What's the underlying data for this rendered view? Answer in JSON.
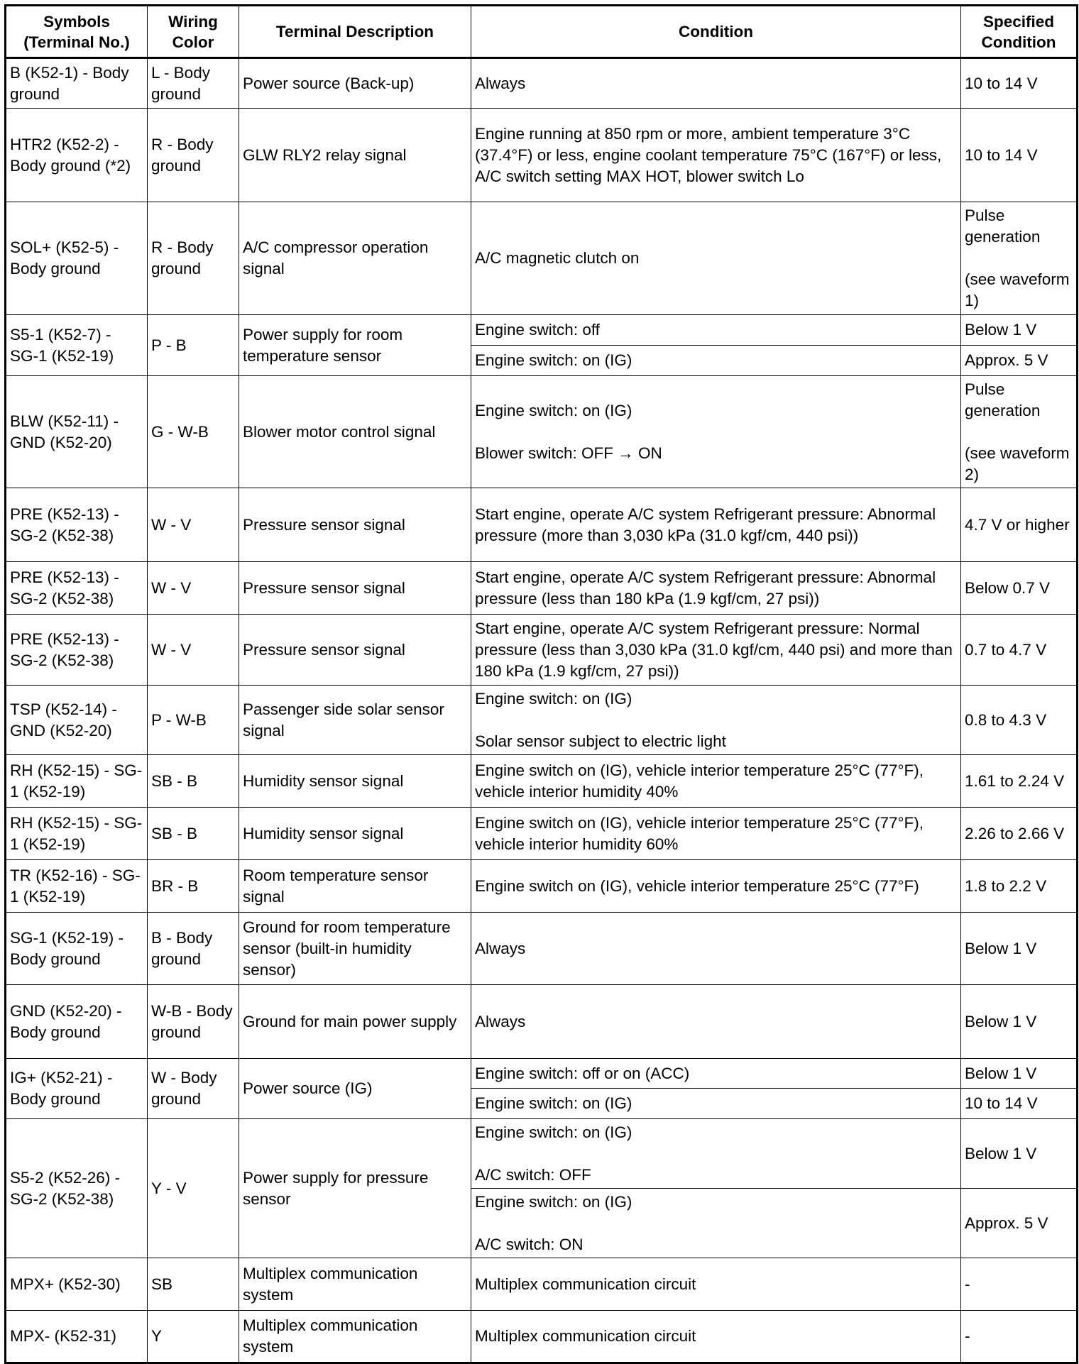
{
  "headers": [
    "Symbols\n(Terminal No.)",
    "Wiring\nColor",
    "Terminal Description",
    "Condition",
    "Specified\nCondition"
  ],
  "rows": [
    {
      "symbol": "B (K52-1) - Body ground",
      "wiring": "L - Body ground",
      "description": "Power source (Back-up)",
      "conditions": [
        {
          "condition": "Always",
          "spec": "10 to 14 V"
        }
      ]
    },
    {
      "symbol": "HTR2 (K52-2) - Body ground (*2)",
      "wiring": "R - Body ground",
      "description": "GLW RLY2 relay signal",
      "conditions": [
        {
          "condition": "Engine running at 850 rpm or more, ambient temperature 3°C (37.4°F) or less, engine coolant temperature 75°C (167°F) or less, A/C switch setting MAX HOT, blower switch Lo",
          "spec": "10 to 14 V"
        }
      ]
    },
    {
      "symbol": "SOL+ (K52-5) - Body ground",
      "wiring": "R - Body ground",
      "description": "A/C compressor operation signal",
      "conditions": [
        {
          "condition": "A/C magnetic clutch on",
          "spec": "Pulse generation\n\n(see waveform 1)"
        }
      ]
    },
    {
      "symbol": "S5-1 (K52-7) - SG-1 (K52-19)",
      "wiring": "P - B",
      "description": "Power supply for room temperature sensor",
      "conditions": [
        {
          "condition": "Engine switch: off",
          "spec": "Below 1 V"
        },
        {
          "condition": "Engine switch: on (IG)",
          "spec": "Approx. 5 V"
        }
      ]
    },
    {
      "symbol": "BLW (K52-11) - GND (K52-20)",
      "wiring": "G - W-B",
      "description": "Blower motor control signal",
      "conditions": [
        {
          "condition": "Engine switch: on (IG)\n\nBlower switch: OFF → ON",
          "spec": "Pulse generation\n\n(see waveform 2)"
        }
      ]
    },
    {
      "symbol": "PRE (K52-13) - SG-2 (K52-38)",
      "wiring": "W - V",
      "description": "Pressure sensor signal",
      "conditions": [
        {
          "condition": "Start engine, operate A/C system Refrigerant pressure: Abnormal pressure (more than 3,030 kPa (31.0 kgf/cm, 440 psi))",
          "spec": "4.7 V or higher"
        }
      ]
    },
    {
      "symbol": "PRE (K52-13) - SG-2 (K52-38)",
      "wiring": "W - V",
      "description": "Pressure sensor signal",
      "conditions": [
        {
          "condition": "Start engine, operate A/C system Refrigerant pressure: Abnormal pressure (less than 180 kPa (1.9 kgf/cm, 27 psi))",
          "spec": "Below 0.7 V"
        }
      ]
    },
    {
      "symbol": "PRE (K52-13) - SG-2 (K52-38)",
      "wiring": "W - V",
      "description": "Pressure sensor signal",
      "conditions": [
        {
          "condition": "Start engine, operate A/C system Refrigerant pressure: Normal pressure (less than 3,030 kPa (31.0 kgf/cm, 440 psi) and more than 180 kPa (1.9 kgf/cm, 27 psi))",
          "spec": "0.7 to 4.7 V"
        }
      ]
    },
    {
      "symbol": "TSP (K52-14) - GND (K52-20)",
      "wiring": "P - W-B",
      "description": "Passenger side solar sensor signal",
      "conditions": [
        {
          "condition": "Engine switch: on (IG)\n\nSolar sensor subject to electric light",
          "spec": "0.8 to 4.3 V"
        }
      ]
    },
    {
      "symbol": "RH (K52-15) - SG-1 (K52-19)",
      "wiring": "SB - B",
      "description": "Humidity sensor signal",
      "conditions": [
        {
          "condition": "Engine switch on (IG), vehicle interior temperature 25°C (77°F), vehicle interior humidity 40%",
          "spec": "1.61 to 2.24 V"
        }
      ]
    },
    {
      "symbol": "RH (K52-15) - SG-1 (K52-19)",
      "wiring": "SB - B",
      "description": "Humidity sensor signal",
      "conditions": [
        {
          "condition": "Engine switch on (IG), vehicle interior temperature 25°C (77°F), vehicle interior humidity 60%",
          "spec": "2.26 to 2.66 V"
        }
      ]
    },
    {
      "symbol": "TR (K52-16) - SG-1 (K52-19)",
      "wiring": "BR - B",
      "description": "Room temperature sensor signal",
      "conditions": [
        {
          "condition": "Engine switch on (IG), vehicle interior temperature 25°C (77°F)",
          "spec": "1.8 to 2.2 V"
        }
      ]
    },
    {
      "symbol": "SG-1 (K52-19) - Body ground",
      "wiring": "B - Body ground",
      "description": "Ground for room temperature sensor (built-in humidity sensor)",
      "conditions": [
        {
          "condition": "Always",
          "spec": "Below 1 V"
        }
      ]
    },
    {
      "symbol": "GND (K52-20) - Body ground",
      "wiring": "W-B - Body ground",
      "description": "Ground for main power supply",
      "conditions": [
        {
          "condition": "Always",
          "spec": "Below 1 V"
        }
      ]
    },
    {
      "symbol": "IG+ (K52-21) - Body ground",
      "wiring": "W - Body ground",
      "description": "Power source (IG)",
      "conditions": [
        {
          "condition": "Engine switch: off or on (ACC)",
          "spec": "Below 1 V"
        },
        {
          "condition": "Engine switch: on (IG)",
          "spec": "10 to 14 V"
        }
      ]
    },
    {
      "symbol": "S5-2 (K52-26) - SG-2 (K52-38)",
      "wiring": "Y - V",
      "description": "Power supply for pressure sensor",
      "conditions": [
        {
          "condition": "Engine switch: on (IG)\n\nA/C switch: OFF",
          "spec": "Below 1 V"
        },
        {
          "condition": "Engine switch: on (IG)\n\nA/C switch: ON",
          "spec": "Approx. 5 V"
        }
      ]
    },
    {
      "symbol": "MPX+ (K52-30)",
      "wiring": "SB",
      "description": "Multiplex communication system",
      "conditions": [
        {
          "condition": "Multiplex communication circuit",
          "spec": "-"
        }
      ]
    },
    {
      "symbol": "MPX- (K52-31)",
      "wiring": "Y",
      "description": "Multiplex communication system",
      "conditions": [
        {
          "condition": "Multiplex communication circuit",
          "spec": "-"
        }
      ]
    }
  ]
}
